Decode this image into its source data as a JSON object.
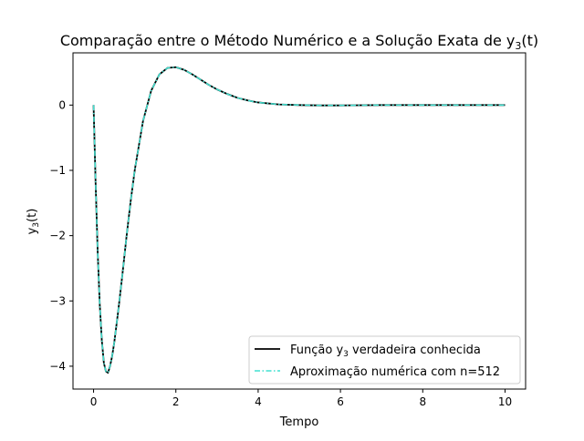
{
  "chart_data": {
    "type": "line",
    "title_main": "Comparação entre o Método Numérico e a Solução Exata de y",
    "title_sub": "3",
    "title_tail": "(t)",
    "xlabel": "Tempo",
    "ylabel_main": "y",
    "ylabel_sub": "3",
    "ylabel_tail": "(t)",
    "xlim": [
      -0.5,
      10.5
    ],
    "ylim": [
      -4.35,
      0.8
    ],
    "xticks": [
      0,
      2,
      4,
      6,
      8,
      10
    ],
    "yticks": [
      0,
      -1,
      -2,
      -3,
      -4
    ],
    "xtick_labels": [
      "0",
      "2",
      "4",
      "6",
      "8",
      "10"
    ],
    "ytick_labels": [
      "0",
      "−1",
      "−2",
      "−3",
      "−4"
    ],
    "grid": false,
    "legend_position": "lower-right",
    "series": [
      {
        "legend_main": "Função y",
        "legend_sub": "3",
        "legend_tail": " verdadeira conhecida",
        "color": "#000000",
        "style": "solid"
      },
      {
        "legend_main": "Aproximação numérica com n=512",
        "legend_sub": "",
        "legend_tail": "",
        "color": "#40e0d0",
        "style": "dashdot"
      }
    ],
    "x": [
      0,
      0.05,
      0.1,
      0.15,
      0.2,
      0.25,
      0.3,
      0.35,
      0.4,
      0.45,
      0.5,
      0.6,
      0.7,
      0.8,
      0.9,
      1.0,
      1.2,
      1.4,
      1.6,
      1.8,
      2.0,
      2.2,
      2.4,
      2.6,
      2.8,
      3.0,
      3.25,
      3.5,
      3.75,
      4.0,
      4.5,
      5.0,
      5.5,
      6.0,
      7.0,
      8.0,
      9.0,
      10.0
    ],
    "y": [
      0,
      -1.2,
      -2.25,
      -3.05,
      -3.6,
      -3.95,
      -4.08,
      -4.1,
      -4.0,
      -3.85,
      -3.65,
      -3.15,
      -2.6,
      -2.02,
      -1.48,
      -1.0,
      -0.25,
      0.22,
      0.47,
      0.57,
      0.58,
      0.54,
      0.47,
      0.39,
      0.31,
      0.24,
      0.17,
      0.11,
      0.07,
      0.04,
      0.01,
      0.0,
      -0.005,
      -0.005,
      0.0,
      0.0,
      0.0,
      0.0
    ]
  }
}
